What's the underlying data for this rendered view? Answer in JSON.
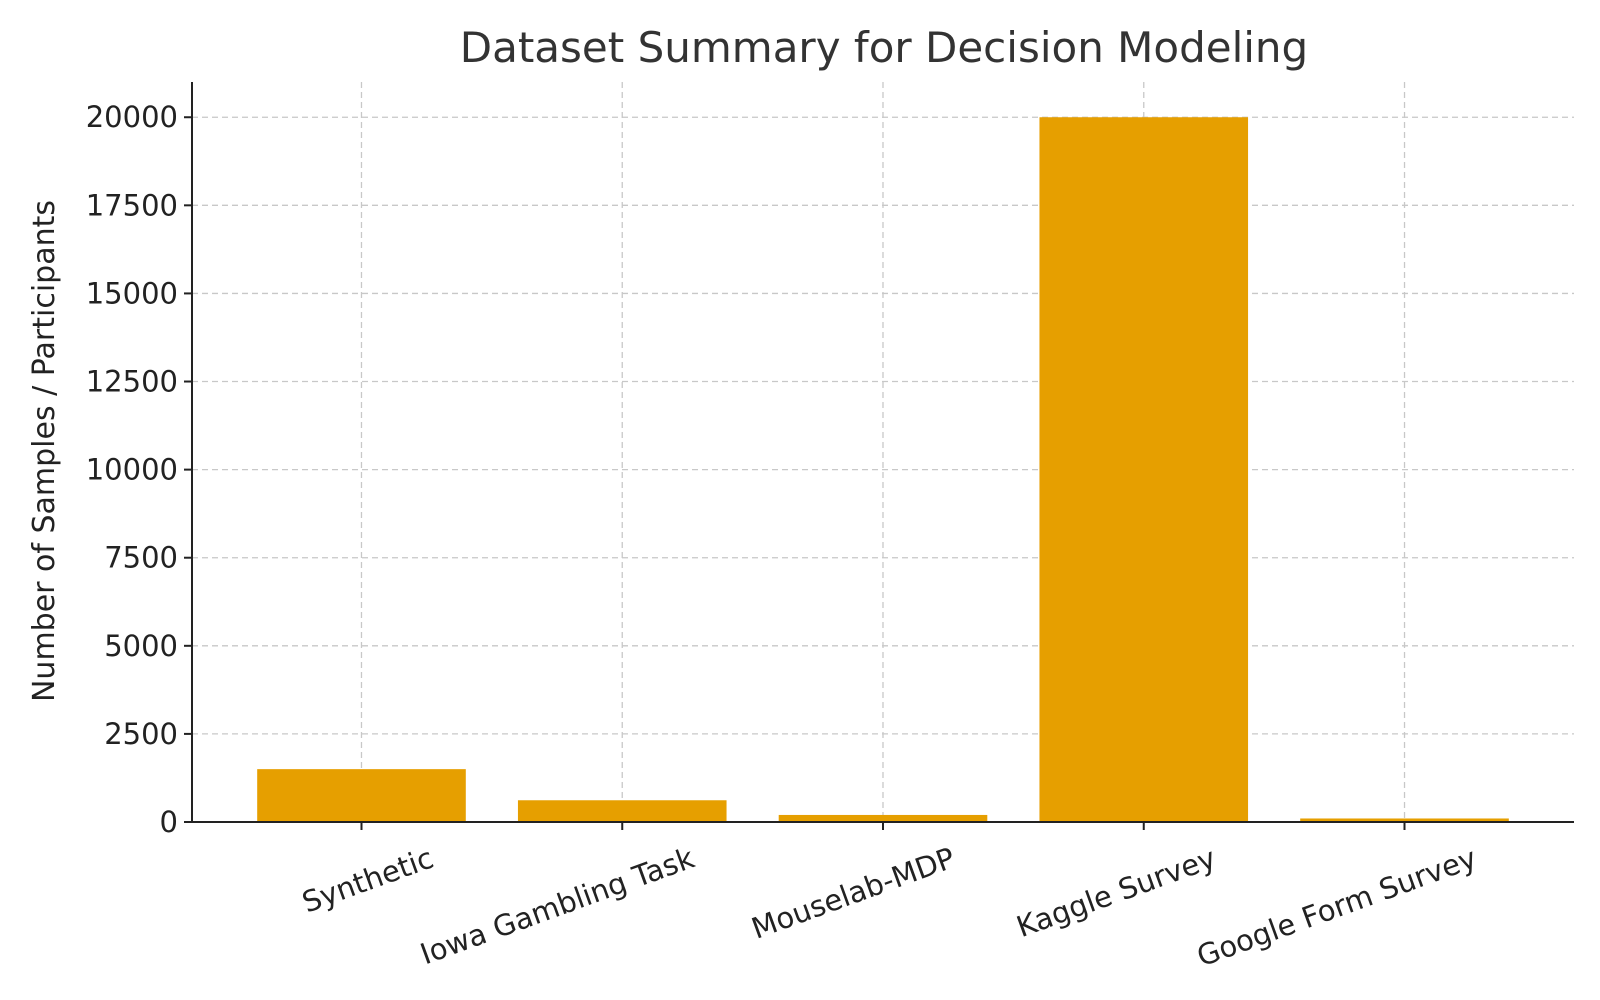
{
  "chart_data": {
    "type": "bar",
    "title": "Dataset Summary for Decision Modeling",
    "xlabel": "",
    "ylabel": "Number of Samples / Participants",
    "categories": [
      "Synthetic",
      "Iowa Gambling Task",
      "Mouselab-MDP",
      "Kaggle Survey",
      "Google Form Survey"
    ],
    "values": [
      1500,
      617,
      200,
      20000,
      100
    ],
    "ylim": [
      0,
      21000
    ],
    "yticks": [
      0,
      2500,
      5000,
      7500,
      10000,
      12500,
      15000,
      17500,
      20000
    ],
    "grid": true,
    "bar_color": "#E69F00",
    "x_tick_rotation_deg": 20
  }
}
